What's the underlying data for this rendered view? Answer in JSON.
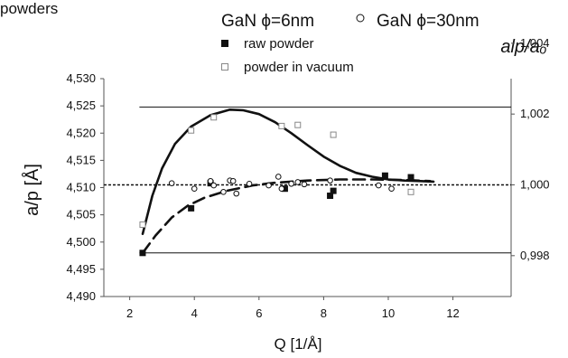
{
  "corner_text": "powders",
  "legend": {
    "title_a": "GaN ϕ=6nm",
    "title_b": "GaN ϕ=30nm",
    "item_raw": "raw powder",
    "item_vacuum": "powder in vacuum"
  },
  "chart_data": {
    "type": "scatter",
    "xlabel": "Q [1/Å]",
    "ylabel": "a/p [Å]",
    "ylabel_right": "alp/aₒ",
    "xlim": [
      1.2,
      13.8
    ],
    "ylim": [
      4.49,
      4.53
    ],
    "x_ticks": [
      2,
      4,
      6,
      8,
      10,
      12
    ],
    "y_ticks": [
      4.49,
      4.495,
      4.5,
      4.505,
      4.51,
      4.515,
      4.52,
      4.525,
      4.53
    ],
    "y_tick_labels": [
      "4,490",
      "4,495",
      "4,500",
      "4,505",
      "4,510",
      "4,515",
      "4,520",
      "4,525",
      "4,530"
    ],
    "y2_ticks": [
      4.4975,
      4.5105,
      4.5235,
      4.5365
    ],
    "y2_tick_labels": [
      "0,998",
      "1,000",
      "1,002",
      "1,004"
    ],
    "reference_lines": [
      {
        "y": 4.5105,
        "style": "dotted",
        "x_range": [
          1.2,
          13.8
        ]
      },
      {
        "y": 4.498,
        "style": "solid",
        "x_range": [
          2.3,
          13.8
        ]
      },
      {
        "y": 4.5248,
        "style": "solid",
        "x_range": [
          2.3,
          13.8
        ]
      }
    ],
    "series": [
      {
        "name": "raw powder",
        "marker": "filled-square",
        "points": [
          [
            2.4,
            4.498
          ],
          [
            3.9,
            4.5062
          ],
          [
            4.5,
            4.5108
          ],
          [
            6.8,
            4.5098
          ],
          [
            8.2,
            4.5085
          ],
          [
            8.3,
            4.5094
          ],
          [
            9.9,
            4.5122
          ],
          [
            10.7,
            4.5119
          ]
        ]
      },
      {
        "name": "powder in vacuum",
        "marker": "open-square",
        "points": [
          [
            2.4,
            4.5032
          ],
          [
            3.9,
            4.5205
          ],
          [
            4.6,
            4.5229
          ],
          [
            6.7,
            4.5213
          ],
          [
            7.2,
            4.5215
          ],
          [
            8.3,
            4.5197
          ],
          [
            10.7,
            4.5092
          ]
        ]
      },
      {
        "name": "GaN ϕ=30nm",
        "marker": "open-circle",
        "points": [
          [
            3.3,
            4.5108
          ],
          [
            4.0,
            4.5098
          ],
          [
            4.5,
            4.5112
          ],
          [
            4.6,
            4.5104
          ],
          [
            4.9,
            4.5092
          ],
          [
            5.1,
            4.5113
          ],
          [
            5.2,
            4.5112
          ],
          [
            5.3,
            4.5089
          ],
          [
            5.7,
            4.5107
          ],
          [
            6.3,
            4.5104
          ],
          [
            6.6,
            4.512
          ],
          [
            6.7,
            4.5098
          ],
          [
            7.0,
            4.5107
          ],
          [
            7.2,
            4.511
          ],
          [
            7.4,
            4.5106
          ],
          [
            8.2,
            4.5113
          ],
          [
            9.7,
            4.5104
          ],
          [
            10.1,
            4.5098
          ]
        ]
      }
    ],
    "fit_curves": [
      {
        "style": "solid",
        "points": [
          [
            2.4,
            4.5015
          ],
          [
            2.7,
            4.5085
          ],
          [
            3.0,
            4.5135
          ],
          [
            3.4,
            4.518
          ],
          [
            3.9,
            4.5212
          ],
          [
            4.5,
            4.5233
          ],
          [
            5.1,
            4.5243
          ],
          [
            5.5,
            4.5242
          ],
          [
            6.0,
            4.5235
          ],
          [
            6.5,
            4.522
          ],
          [
            7.0,
            4.52
          ],
          [
            7.5,
            4.5178
          ],
          [
            8.0,
            4.5157
          ],
          [
            8.5,
            4.514
          ],
          [
            9.0,
            4.5127
          ],
          [
            9.5,
            4.512
          ],
          [
            10.0,
            4.5115
          ],
          [
            10.5,
            4.5113
          ],
          [
            11.0,
            4.5112
          ],
          [
            11.4,
            4.5111
          ]
        ]
      },
      {
        "style": "dashed",
        "points": [
          [
            2.4,
            4.498
          ],
          [
            2.8,
            4.5012
          ],
          [
            3.3,
            4.5045
          ],
          [
            3.8,
            4.5067
          ],
          [
            4.3,
            4.5081
          ],
          [
            5.0,
            4.5094
          ],
          [
            5.8,
            4.5104
          ],
          [
            6.5,
            4.5109
          ],
          [
            7.5,
            4.5113
          ],
          [
            8.5,
            4.5115
          ],
          [
            9.5,
            4.5115
          ],
          [
            10.5,
            4.5114
          ],
          [
            11.3,
            4.5112
          ]
        ]
      }
    ]
  }
}
